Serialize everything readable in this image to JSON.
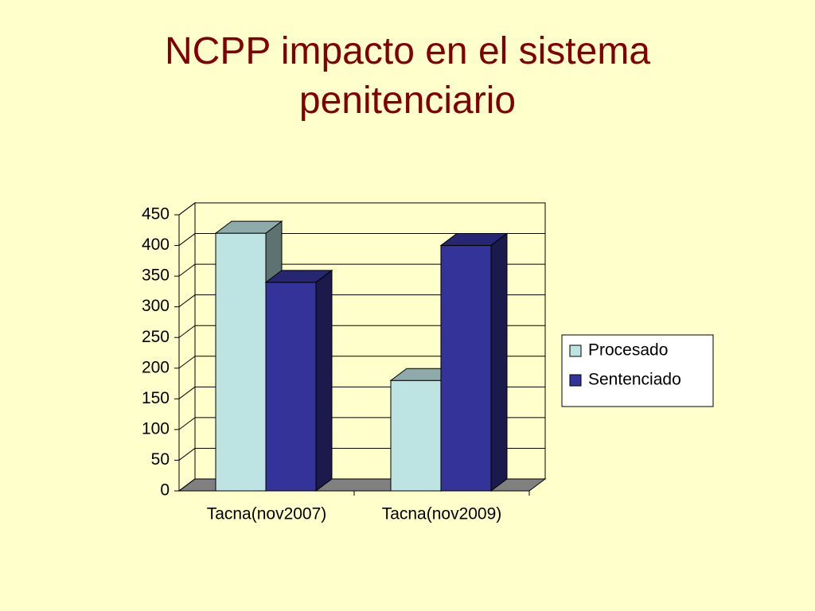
{
  "chart_data": {
    "type": "bar",
    "title": "NCPP impacto en el sistema penitenciario",
    "categories": [
      "Tacna(nov2007)",
      "Tacna(nov2009)"
    ],
    "series": [
      {
        "name": "Procesado",
        "color": "#bde3e3",
        "values": [
          420,
          180
        ]
      },
      {
        "name": "Sentenciado",
        "color": "#333399",
        "values": [
          340,
          400
        ]
      }
    ],
    "ylim": [
      0,
      450
    ],
    "yticks": [
      0,
      50,
      100,
      150,
      200,
      250,
      300,
      350,
      400,
      450
    ],
    "grid": true,
    "legend": "right"
  }
}
